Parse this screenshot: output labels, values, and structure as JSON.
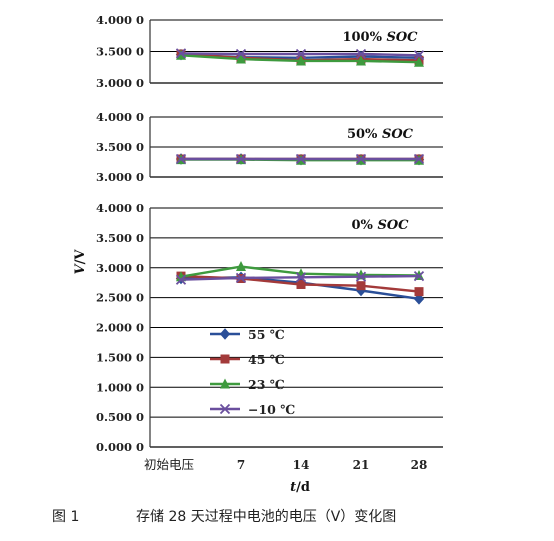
{
  "caption": {
    "number": "图 1",
    "text": "存储 28 天过程中电池的电压（V）变化图"
  },
  "chart_data": [
    {
      "type": "line",
      "title": "100% SOC",
      "categories": [
        "初始电压",
        "7",
        "14",
        "21",
        "28"
      ],
      "yticks": [
        "3.000 0",
        "3.500 0",
        "4.000 0"
      ],
      "ylim": [
        3.0,
        4.0
      ],
      "series": [
        {
          "name": "55 ℃",
          "values": [
            3.45,
            3.41,
            3.4,
            3.42,
            3.4
          ]
        },
        {
          "name": "45 ℃",
          "values": [
            3.46,
            3.4,
            3.36,
            3.38,
            3.36
          ]
        },
        {
          "name": "23 ℃",
          "values": [
            3.44,
            3.38,
            3.35,
            3.35,
            3.33
          ]
        },
        {
          "name": "−10 ℃",
          "values": [
            3.47,
            3.46,
            3.46,
            3.46,
            3.44
          ]
        }
      ]
    },
    {
      "type": "line",
      "title": "50% SOC",
      "categories": [
        "初始电压",
        "7",
        "14",
        "21",
        "28"
      ],
      "yticks": [
        "3.000 0",
        "3.500 0",
        "4.000 0"
      ],
      "ylim": [
        3.0,
        4.0
      ],
      "series": [
        {
          "name": "55 ℃",
          "values": [
            3.3,
            3.3,
            3.29,
            3.29,
            3.29
          ]
        },
        {
          "name": "45 ℃",
          "values": [
            3.3,
            3.3,
            3.3,
            3.3,
            3.3
          ]
        },
        {
          "name": "23 ℃",
          "values": [
            3.29,
            3.29,
            3.28,
            3.28,
            3.28
          ]
        },
        {
          "name": "−10 ℃",
          "values": [
            3.3,
            3.3,
            3.3,
            3.3,
            3.3
          ]
        }
      ]
    },
    {
      "type": "line",
      "title": "0% SOC",
      "categories": [
        "初始电压",
        "7",
        "14",
        "21",
        "28"
      ],
      "yticks": [
        "0.000 0",
        "0.500 0",
        "1.000 0",
        "1.500 0",
        "2.000 0",
        "2.500 0",
        "3.000 0",
        "3.500 0",
        "4.000 0"
      ],
      "ylim": [
        0.0,
        4.0
      ],
      "ylabel": "V/V",
      "xlabel": "t/d",
      "legend_position": "lower-left",
      "series": [
        {
          "name": "55 ℃",
          "values": [
            2.82,
            2.84,
            2.75,
            2.62,
            2.48
          ]
        },
        {
          "name": "45 ℃",
          "values": [
            2.86,
            2.82,
            2.72,
            2.7,
            2.6
          ]
        },
        {
          "name": "23 ℃",
          "values": [
            2.85,
            3.02,
            2.9,
            2.88,
            2.87
          ]
        },
        {
          "name": "−10 ℃",
          "values": [
            2.8,
            2.83,
            2.84,
            2.85,
            2.86
          ]
        }
      ]
    }
  ],
  "colors": {
    "55 ℃": "#2a4f98",
    "45 ℃": "#a33a3a",
    "23 ℃": "#3e9a3e",
    "−10 ℃": "#6a4f9e",
    "axis": "#333333",
    "grid": "#000000"
  },
  "markers": {
    "55 ℃": "diamond",
    "45 ℃": "square",
    "23 ℃": "triangle",
    "−10 ℃": "x-cross"
  }
}
